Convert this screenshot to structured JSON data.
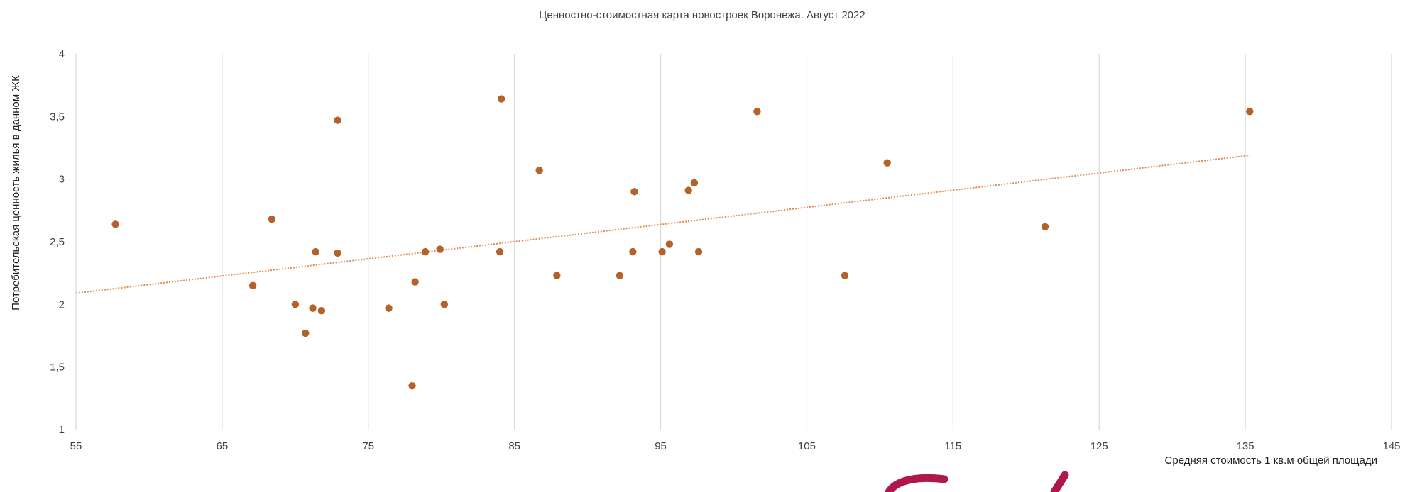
{
  "chart_data": {
    "type": "scatter",
    "title": "Ценностно-стоимостная карта новостроек Воронежа. Август 2022",
    "xlabel": "Средняя стоимость 1 кв.м общей площади",
    "ylabel": "Потребительская ценность жилья в данном  ЖК",
    "xlim": [
      55,
      145
    ],
    "ylim": [
      1,
      4
    ],
    "x_ticks": [
      "55",
      "65",
      "75",
      "85",
      "95",
      "105",
      "115",
      "125",
      "135",
      "145"
    ],
    "y_ticks": [
      "1",
      "1,5",
      "2",
      "2,5",
      "3",
      "3,5",
      "4"
    ],
    "grid": "vertical",
    "point_color": "#b5622a",
    "trendline_color": "#e38a4e",
    "trendline": {
      "type": "linear",
      "x": [
        55,
        135.3
      ],
      "y": [
        2.09,
        3.19
      ]
    },
    "points": [
      {
        "x": 57.7,
        "y": 2.64
      },
      {
        "x": 67.1,
        "y": 2.15
      },
      {
        "x": 68.4,
        "y": 2.68
      },
      {
        "x": 70.0,
        "y": 2.0
      },
      {
        "x": 70.7,
        "y": 1.77
      },
      {
        "x": 71.2,
        "y": 1.97
      },
      {
        "x": 71.4,
        "y": 2.42
      },
      {
        "x": 71.8,
        "y": 1.95
      },
      {
        "x": 72.9,
        "y": 2.41
      },
      {
        "x": 72.9,
        "y": 3.47
      },
      {
        "x": 76.4,
        "y": 1.97
      },
      {
        "x": 78.0,
        "y": 1.35
      },
      {
        "x": 78.2,
        "y": 2.18
      },
      {
        "x": 78.9,
        "y": 2.42
      },
      {
        "x": 79.9,
        "y": 2.44
      },
      {
        "x": 80.2,
        "y": 2.0
      },
      {
        "x": 84.0,
        "y": 2.42
      },
      {
        "x": 84.1,
        "y": 3.64
      },
      {
        "x": 86.7,
        "y": 3.07
      },
      {
        "x": 87.9,
        "y": 2.23
      },
      {
        "x": 92.2,
        "y": 2.23
      },
      {
        "x": 93.1,
        "y": 2.42
      },
      {
        "x": 93.2,
        "y": 2.9
      },
      {
        "x": 95.1,
        "y": 2.42
      },
      {
        "x": 95.6,
        "y": 2.48
      },
      {
        "x": 96.9,
        "y": 2.91
      },
      {
        "x": 97.3,
        "y": 2.97
      },
      {
        "x": 97.6,
        "y": 2.42
      },
      {
        "x": 101.6,
        "y": 3.54
      },
      {
        "x": 107.6,
        "y": 2.23
      },
      {
        "x": 110.5,
        "y": 3.13
      },
      {
        "x": 121.3,
        "y": 2.62
      },
      {
        "x": 135.3,
        "y": 3.54
      }
    ]
  }
}
